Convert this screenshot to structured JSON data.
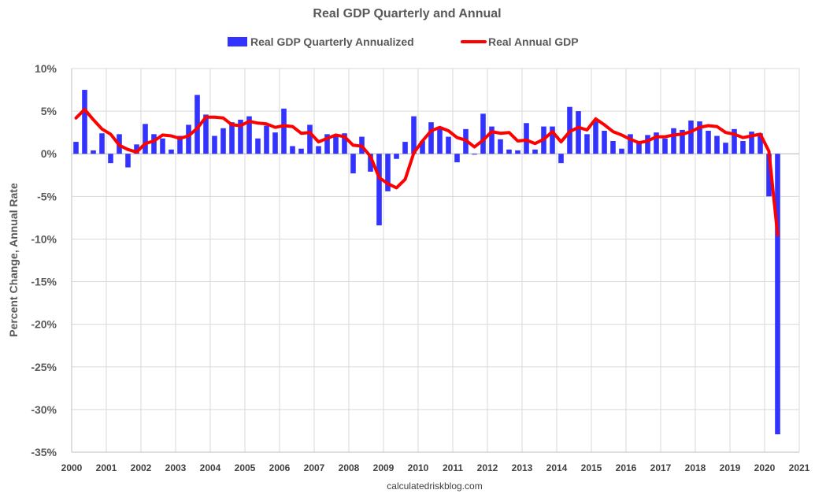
{
  "chart_data": {
    "type": "bar",
    "title": "Real GDP Quarterly and Annual",
    "xlabel": "",
    "ylabel": "Percent Change, Annual Rate",
    "ylim": [
      -35,
      10
    ],
    "y_ticks": [
      10,
      5,
      0,
      -5,
      -10,
      -15,
      -20,
      -25,
      -30,
      -35
    ],
    "y_tick_labels": [
      "10%",
      "5%",
      "0%",
      "-5%",
      "-10%",
      "-15%",
      "-20%",
      "-25%",
      "-30%",
      "-35%"
    ],
    "xlim": [
      2000,
      2021
    ],
    "x_tick_labels": [
      "2000",
      "2001",
      "2002",
      "2003",
      "2004",
      "2005",
      "2006",
      "2007",
      "2008",
      "2009",
      "2010",
      "2011",
      "2012",
      "2013",
      "2014",
      "2015",
      "2016",
      "2017",
      "2018",
      "2019",
      "2020",
      "2021"
    ],
    "grid": true,
    "legend_position": "top",
    "source": "calculatedriskblog.com",
    "series": [
      {
        "name": "Real GDP Quarterly Annualized",
        "type": "bar",
        "color": "#3333ff",
        "quarters": [
          "2000Q1",
          "2000Q2",
          "2000Q3",
          "2000Q4",
          "2001Q1",
          "2001Q2",
          "2001Q3",
          "2001Q4",
          "2002Q1",
          "2002Q2",
          "2002Q3",
          "2002Q4",
          "2003Q1",
          "2003Q2",
          "2003Q3",
          "2003Q4",
          "2004Q1",
          "2004Q2",
          "2004Q3",
          "2004Q4",
          "2005Q1",
          "2005Q2",
          "2005Q3",
          "2005Q4",
          "2006Q1",
          "2006Q2",
          "2006Q3",
          "2006Q4",
          "2007Q1",
          "2007Q2",
          "2007Q3",
          "2007Q4",
          "2008Q1",
          "2008Q2",
          "2008Q3",
          "2008Q4",
          "2009Q1",
          "2009Q2",
          "2009Q3",
          "2009Q4",
          "2010Q1",
          "2010Q2",
          "2010Q3",
          "2010Q4",
          "2011Q1",
          "2011Q2",
          "2011Q3",
          "2011Q4",
          "2012Q1",
          "2012Q2",
          "2012Q3",
          "2012Q4",
          "2013Q1",
          "2013Q2",
          "2013Q3",
          "2013Q4",
          "2014Q1",
          "2014Q2",
          "2014Q3",
          "2014Q4",
          "2015Q1",
          "2015Q2",
          "2015Q3",
          "2015Q4",
          "2016Q1",
          "2016Q2",
          "2016Q3",
          "2016Q4",
          "2017Q1",
          "2017Q2",
          "2017Q3",
          "2017Q4",
          "2018Q1",
          "2018Q2",
          "2018Q3",
          "2018Q4",
          "2019Q1",
          "2019Q2",
          "2019Q3",
          "2019Q4",
          "2020Q1",
          "2020Q2"
        ],
        "values": [
          1.4,
          7.5,
          0.4,
          2.4,
          -1.1,
          2.3,
          -1.6,
          1.1,
          3.5,
          2.3,
          1.8,
          0.5,
          2.1,
          3.4,
          6.9,
          4.6,
          2.1,
          3.0,
          3.7,
          4.0,
          4.4,
          1.8,
          3.3,
          2.5,
          5.3,
          0.9,
          0.6,
          3.4,
          0.9,
          2.3,
          2.2,
          2.4,
          -2.3,
          2.0,
          -2.1,
          -8.4,
          -4.4,
          -0.6,
          1.4,
          4.4,
          1.5,
          3.7,
          3.0,
          2.0,
          -1.0,
          2.9,
          -0.1,
          4.7,
          3.2,
          1.7,
          0.5,
          0.4,
          3.6,
          0.5,
          3.2,
          3.2,
          -1.1,
          5.5,
          5.0,
          2.3,
          3.8,
          2.7,
          1.5,
          0.6,
          2.3,
          1.3,
          2.2,
          2.5,
          1.8,
          3.0,
          2.8,
          3.9,
          3.8,
          2.7,
          2.1,
          1.3,
          2.9,
          1.5,
          2.6,
          2.4,
          -5.0,
          -32.9
        ]
      },
      {
        "name": "Real Annual GDP",
        "type": "line",
        "color": "#ff0000",
        "values": [
          4.2,
          5.2,
          4.0,
          2.9,
          2.3,
          1.0,
          0.5,
          0.2,
          1.2,
          1.5,
          2.2,
          2.1,
          1.8,
          2.1,
          3.0,
          4.3,
          4.3,
          4.2,
          3.4,
          3.3,
          3.8,
          3.6,
          3.5,
          3.1,
          3.3,
          3.2,
          2.4,
          2.5,
          1.4,
          1.8,
          2.2,
          2.0,
          1.0,
          0.9,
          -0.3,
          -2.8,
          -3.5,
          -4.0,
          -3.0,
          0.1,
          1.5,
          2.7,
          3.1,
          2.7,
          1.9,
          1.6,
          0.8,
          1.6,
          2.6,
          2.4,
          2.5,
          1.5,
          1.6,
          1.2,
          1.7,
          2.6,
          1.4,
          2.6,
          3.1,
          2.8,
          4.1,
          3.4,
          2.6,
          2.2,
          1.7,
          1.3,
          1.5,
          2.0,
          2.0,
          2.2,
          2.3,
          2.6,
          3.1,
          3.3,
          3.2,
          2.5,
          2.3,
          1.9,
          2.1,
          2.3,
          0.3,
          -9.5
        ]
      }
    ]
  }
}
